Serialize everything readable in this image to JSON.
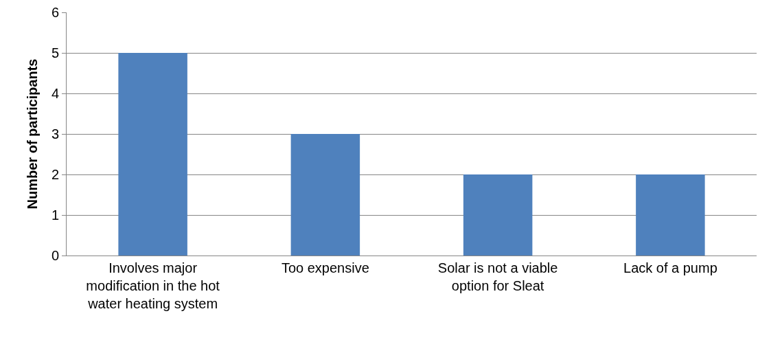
{
  "chart_data": {
    "type": "bar",
    "categories": [
      "Involves major modification in the hot water heating system",
      "Too expensive",
      "Solar is not a viable option for Sleat",
      "Lack of a pump"
    ],
    "values": [
      5,
      3,
      2,
      2
    ],
    "color": "#4f81bd",
    "ylabel": "Number of participants",
    "ylim": [
      0,
      6
    ],
    "yticks": [
      0,
      1,
      2,
      3,
      4,
      5,
      6
    ],
    "grid": "y"
  }
}
